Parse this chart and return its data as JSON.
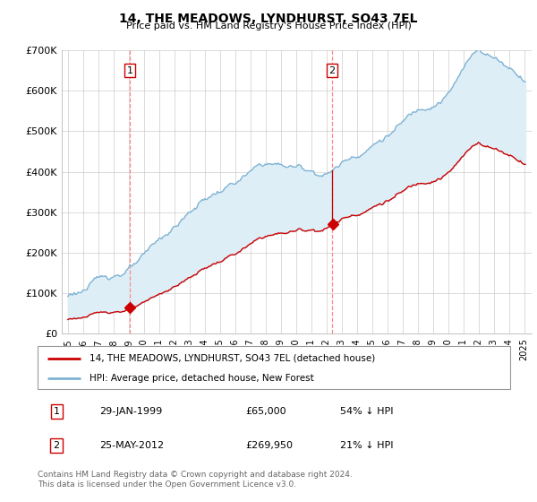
{
  "title": "14, THE MEADOWS, LYNDHURST, SO43 7EL",
  "subtitle": "Price paid vs. HM Land Registry's House Price Index (HPI)",
  "legend_line1": "14, THE MEADOWS, LYNDHURST, SO43 7EL (detached house)",
  "legend_line2": "HPI: Average price, detached house, New Forest",
  "footer": "Contains HM Land Registry data © Crown copyright and database right 2024.\nThis data is licensed under the Open Government Licence v3.0.",
  "transactions": [
    {
      "num": 1,
      "date": "29-JAN-1999",
      "price": "£65,000",
      "hpi_diff": "54% ↓ HPI",
      "year": 1999.08,
      "value": 65000
    },
    {
      "num": 2,
      "date": "25-MAY-2012",
      "price": "£269,950",
      "hpi_diff": "21% ↓ HPI",
      "year": 2012.38,
      "value": 269950
    }
  ],
  "ylim": [
    0,
    700000
  ],
  "yticks": [
    0,
    100000,
    200000,
    300000,
    400000,
    500000,
    600000,
    700000
  ],
  "red_color": "#cc0000",
  "blue_color": "#7fb3d3",
  "fill_color": "#ddeef7",
  "vline_color": "#ff8888",
  "grid_color": "#cccccc",
  "title_fontsize": 10,
  "subtitle_fontsize": 8
}
